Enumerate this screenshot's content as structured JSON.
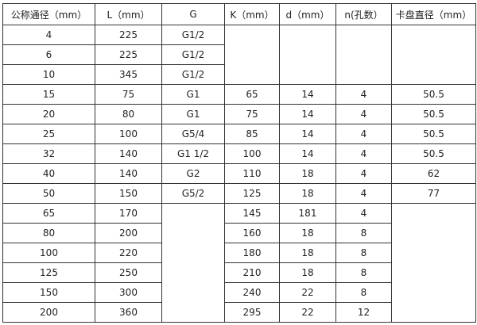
{
  "headers": [
    "公称通径（mm）",
    "L（mm）",
    "G",
    "K（mm）",
    "d（mm）",
    "n(孔数）",
    "卡盘直径（mm）"
  ],
  "rows": [
    {
      "dn": "4",
      "L": "225",
      "G": "G1/2"
    },
    {
      "dn": "6",
      "L": "225",
      "G": "G1/2"
    },
    {
      "dn": "10",
      "L": "345",
      "G": "G1/2"
    },
    {
      "dn": "15",
      "L": "75",
      "G": "G1",
      "K": "65",
      "d": "14",
      "n": "4",
      "chuck": "50.5"
    },
    {
      "dn": "20",
      "L": "80",
      "G": "G1",
      "K": "75",
      "d": "14",
      "n": "4",
      "chuck": "50.5"
    },
    {
      "dn": "25",
      "L": "100",
      "G": "G5/4",
      "K": "85",
      "d": "14",
      "n": "4",
      "chuck": "50.5"
    },
    {
      "dn": "32",
      "L": "140",
      "G": "G1  1/2",
      "K": "100",
      "d": "14",
      "n": "4",
      "chuck": "50.5"
    },
    {
      "dn": "40",
      "L": "140",
      "G": "G2",
      "K": "110",
      "d": "18",
      "n": "4",
      "chuck": "62"
    },
    {
      "dn": "50",
      "L": "150",
      "G": "G5/2",
      "K": "125",
      "d": "18",
      "n": "4",
      "chuck": "77"
    },
    {
      "dn": "65",
      "L": "170",
      "K": "145",
      "d": "181",
      "n": "4"
    },
    {
      "dn": "80",
      "L": "200",
      "K": "160",
      "d": "18",
      "n": "8"
    },
    {
      "dn": "100",
      "L": "220",
      "K": "180",
      "d": "18",
      "n": "8"
    },
    {
      "dn": "125",
      "L": "250",
      "K": "210",
      "d": "18",
      "n": "8"
    },
    {
      "dn": "150",
      "L": "300",
      "K": "240",
      "d": "22",
      "n": "8"
    },
    {
      "dn": "200",
      "L": "360",
      "K": "295",
      "d": "22",
      "n": "12"
    }
  ]
}
